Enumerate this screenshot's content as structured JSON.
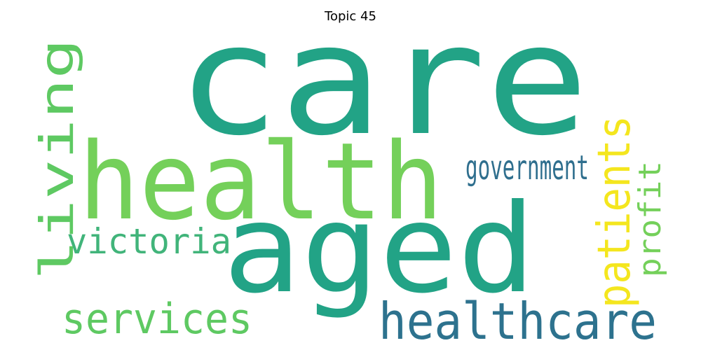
{
  "title": "Topic 45",
  "words": [
    {
      "text": "care",
      "color": "#22a386"
    },
    {
      "text": "health",
      "color": "#74d05a"
    },
    {
      "text": "aged",
      "color": "#22a386"
    },
    {
      "text": "healthcare",
      "color": "#2d728e"
    },
    {
      "text": "services",
      "color": "#5ec962"
    },
    {
      "text": "victoria",
      "color": "#41b47a"
    },
    {
      "text": "government",
      "color": "#2f6f8e"
    },
    {
      "text": "living",
      "color": "#5ec962"
    },
    {
      "text": "patients",
      "color": "#f4e61e"
    },
    {
      "text": "profit",
      "color": "#74d05a"
    }
  ]
}
